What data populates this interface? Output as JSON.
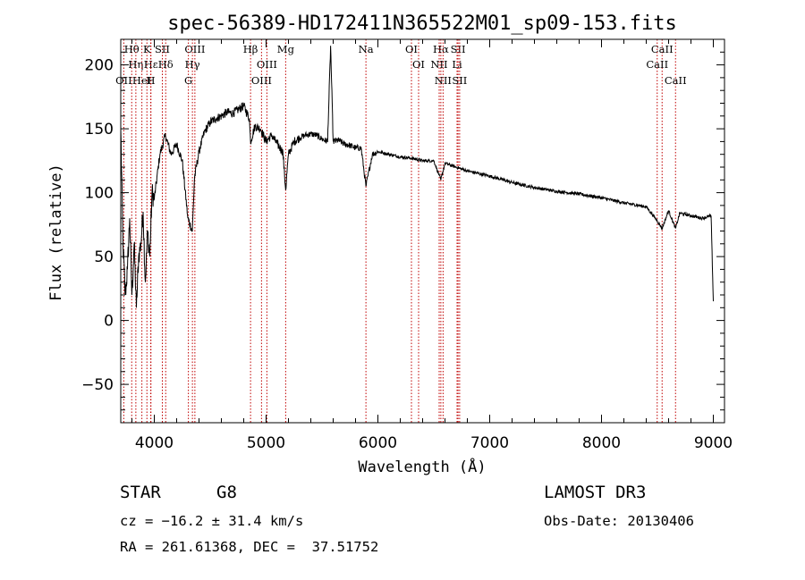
{
  "title": "spec-56389-HD172411N365522M01_sp09-153.fits",
  "chart_data": {
    "type": "line",
    "title": "spec-56389-HD172411N365522M01_sp09-153.fits",
    "xlabel": "Wavelength (Å)",
    "ylabel": "Flux (relative)",
    "xlim": [
      3700,
      9100
    ],
    "ylim": [
      -80,
      220
    ],
    "x_ticks": [
      4000,
      5000,
      6000,
      7000,
      8000,
      9000
    ],
    "x_tick_labels": [
      "4000",
      "5000",
      "6000",
      "7000",
      "8000",
      "9000"
    ],
    "y_ticks": [
      -50,
      0,
      50,
      100,
      150,
      200
    ],
    "y_tick_labels": [
      "−50",
      "0",
      "50",
      "100",
      "150",
      "200"
    ],
    "series": [
      {
        "name": "flux",
        "x": [
          3700,
          3720,
          3740,
          3760,
          3780,
          3800,
          3820,
          3840,
          3860,
          3880,
          3900,
          3920,
          3940,
          3960,
          3980,
          4000,
          4050,
          4100,
          4150,
          4200,
          4250,
          4300,
          4340,
          4360,
          4400,
          4450,
          4500,
          4550,
          4600,
          4650,
          4700,
          4750,
          4800,
          4850,
          4861,
          4900,
          4950,
          5000,
          5050,
          5100,
          5150,
          5175,
          5200,
          5250,
          5300,
          5350,
          5400,
          5450,
          5500,
          5550,
          5577,
          5600,
          5650,
          5700,
          5750,
          5800,
          5850,
          5893,
          5950,
          6000,
          6100,
          6200,
          6300,
          6400,
          6500,
          6563,
          6600,
          6700,
          6800,
          6900,
          7000,
          7200,
          7400,
          7600,
          7800,
          8000,
          8200,
          8400,
          8498,
          8542,
          8600,
          8662,
          8700,
          8800,
          8900,
          8980,
          9000
        ],
        "y": [
          150,
          60,
          20,
          40,
          80,
          20,
          60,
          10,
          50,
          60,
          85,
          30,
          70,
          50,
          100,
          95,
          130,
          145,
          130,
          138,
          125,
          80,
          70,
          112,
          132,
          148,
          155,
          158,
          160,
          163,
          162,
          165,
          168,
          158,
          140,
          152,
          150,
          140,
          145,
          138,
          132,
          102,
          130,
          140,
          143,
          145,
          146,
          145,
          142,
          140,
          215,
          140,
          141,
          138,
          137,
          135,
          135,
          105,
          130,
          132,
          130,
          128,
          127,
          125,
          125,
          110,
          123,
          120,
          117,
          115,
          113,
          108,
          104,
          101,
          99,
          96,
          92,
          89,
          78,
          72,
          86,
          72,
          84,
          82,
          80,
          82,
          15
        ]
      }
    ],
    "line_markers": [
      {
        "label": "Hθ",
        "wavelength": 3798
      },
      {
        "label": "OII",
        "wavelength": 3727
      },
      {
        "label": "Hη",
        "wavelength": 3835
      },
      {
        "label": "HeI",
        "wavelength": 3889
      },
      {
        "label": "K",
        "wavelength": 3934
      },
      {
        "label": "Hε",
        "wavelength": 3970
      },
      {
        "label": "H",
        "wavelength": 3968
      },
      {
        "label": "SII",
        "wavelength": 4072
      },
      {
        "label": "Hδ",
        "wavelength": 4102
      },
      {
        "label": "OIII",
        "wavelength": 4363
      },
      {
        "label": "Hγ",
        "wavelength": 4341
      },
      {
        "label": "G",
        "wavelength": 4305
      },
      {
        "label": "Hβ",
        "wavelength": 4861
      },
      {
        "label": "OIII",
        "wavelength": 5007
      },
      {
        "label": "OIII",
        "wavelength": 4959
      },
      {
        "label": "Mg",
        "wavelength": 5175
      },
      {
        "label": "Na",
        "wavelength": 5893
      },
      {
        "label": "OI",
        "wavelength": 6300
      },
      {
        "label": "OI",
        "wavelength": 6364
      },
      {
        "label": "Hα",
        "wavelength": 6563
      },
      {
        "label": "NII",
        "wavelength": 6548
      },
      {
        "label": "NII",
        "wavelength": 6583
      },
      {
        "label": "SII",
        "wavelength": 6717
      },
      {
        "label": "Li",
        "wavelength": 6708
      },
      {
        "label": "SII",
        "wavelength": 6731
      },
      {
        "label": "CaII",
        "wavelength": 8542
      },
      {
        "label": "CaII",
        "wavelength": 8498
      },
      {
        "label": "CaII",
        "wavelength": 8662
      }
    ],
    "marker_color": "#c00000"
  },
  "info": {
    "object_type": "STAR",
    "subclass": "G8",
    "survey": "LAMOST DR3",
    "redshift": "cz = −16.2 ± 31.4 km/s",
    "obs_date": "Obs-Date: 20130406",
    "coords": "RA = 261.61368, DEC =  37.51752"
  }
}
